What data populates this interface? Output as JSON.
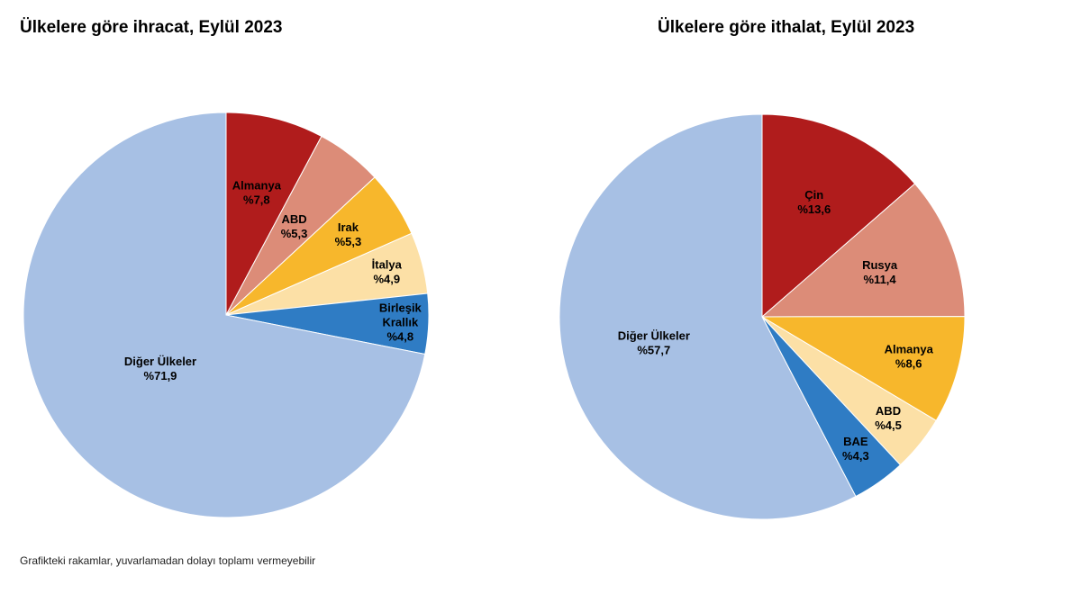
{
  "footnote": "Grafikteki rakamlar, yuvarlamadan dolayı toplamı vermeyebilir",
  "chart_data": [
    {
      "type": "pie",
      "title": "Ülkelere göre ihracat, Eylül 2023",
      "slices": [
        {
          "label": [
            "Almanya"
          ],
          "value": 7.8,
          "value_label": "%7,8",
          "color": "#B01C1C",
          "text_color": "#000000"
        },
        {
          "label": [
            "ABD"
          ],
          "value": 5.3,
          "value_label": "%5,3",
          "color": "#DC8C78",
          "text_color": "#000000"
        },
        {
          "label": [
            "Irak"
          ],
          "value": 5.3,
          "value_label": "%5,3",
          "color": "#F7B72C",
          "text_color": "#000000"
        },
        {
          "label": [
            "İtalya"
          ],
          "value": 4.9,
          "value_label": "%4,9",
          "color": "#FCE0A6",
          "text_color": "#000000"
        },
        {
          "label": [
            "Birleşik",
            "Krallık"
          ],
          "value": 4.8,
          "value_label": "%4,8",
          "color": "#2F7CC4",
          "text_color": "#000000"
        },
        {
          "label": [
            "Diğer Ülkeler"
          ],
          "value": 71.9,
          "value_label": "%71,9",
          "color": "#A7C0E4",
          "text_color": "#000000"
        }
      ]
    },
    {
      "type": "pie",
      "title": "Ülkelere göre ithalat, Eylül 2023",
      "slices": [
        {
          "label": [
            "Çin"
          ],
          "value": 13.6,
          "value_label": "%13,6",
          "color": "#B01C1C",
          "text_color": "#000000"
        },
        {
          "label": [
            "Rusya"
          ],
          "value": 11.4,
          "value_label": "%11,4",
          "color": "#DC8C78",
          "text_color": "#000000"
        },
        {
          "label": [
            "Almanya"
          ],
          "value": 8.6,
          "value_label": "%8,6",
          "color": "#F7B72C",
          "text_color": "#000000"
        },
        {
          "label": [
            "ABD"
          ],
          "value": 4.5,
          "value_label": "%4,5",
          "color": "#FCE0A6",
          "text_color": "#000000"
        },
        {
          "label": [
            "BAE"
          ],
          "value": 4.3,
          "value_label": "%4,3",
          "color": "#2F7CC4",
          "text_color": "#000000"
        },
        {
          "label": [
            "Diğer Ülkeler"
          ],
          "value": 57.7,
          "value_label": "%57,7",
          "color": "#A7C0E4",
          "text_color": "#000000"
        }
      ]
    }
  ]
}
